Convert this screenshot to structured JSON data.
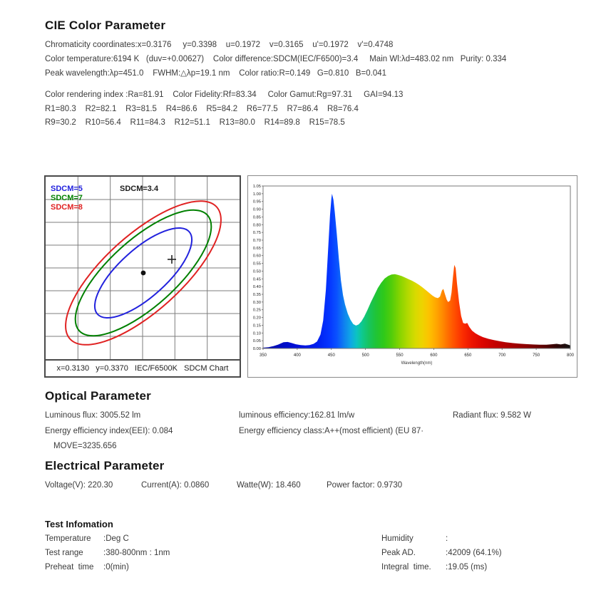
{
  "cie": {
    "title": "CIE Color Parameter",
    "line1": "Chromaticity coordinates:x=0.3176     y=0.3398    u=0.1972    v=0.3165    u'=0.1972    v'=0.4748",
    "line2": "Color temperature:6194 K   (duv=+0.00627)    Color difference:SDCM(IEC/F6500)=3.4     Main Wl:λd=483.02 nm   Purity: 0.334",
    "line3": "Peak wavelength:λp=451.0    FWHM:△λp=19.1 nm    Color ratio:R=0.149   G=0.810   B=0.041",
    "line4": "Color rendering index :Ra=81.91    Color Fidelity:Rf=83.34     Color Gamut:Rg=97.31     GAI=94.13",
    "line5": "R1=80.3    R2=82.1    R3=81.5    R4=86.6    R5=84.2    R6=77.5    R7=86.4    R8=76.4",
    "line6": "R9=30.2    R10=56.4    R11=84.3    R12=51.1    R13=80.0    R14=89.8    R15=78.5"
  },
  "optical": {
    "title": "Optical Parameter",
    "luminous_flux": "Luminous flux: 3005.52 lm",
    "luminous_efficiency": "luminous efficiency:162.81 lm/w",
    "radiant_flux": "Radiant flux: 9.582 W",
    "eei": "Energy efficiency index(EEI): 0.084",
    "energy_class": "Energy efficiency class:A++(most efficient) (EU 87·",
    "move": "MOVE=3235.656"
  },
  "electrical": {
    "title": "Electrical Parameter",
    "voltage": "Voltage(V): 220.30",
    "current": "Current(A): 0.0860",
    "wattage": "Watte(W): 18.460",
    "power_factor": "Power factor: 0.9730"
  },
  "test_info": {
    "title": "Test Infomation",
    "rows_left": [
      {
        "label": "Temperature",
        "value": ":Deg C"
      },
      {
        "label": "Test range",
        "value": ":380-800nm : 1nm"
      },
      {
        "label": "Preheat  time",
        "value": ":0(min)"
      }
    ],
    "rows_right": [
      {
        "label": "Humidity",
        "value": ":"
      },
      {
        "label": "Peak AD.",
        "value": ":42009 (64.1%)"
      },
      {
        "label": "Integral  time.",
        "value": ":19.05 (ms)"
      }
    ]
  },
  "colors": {
    "sdcm5": "#2222dd",
    "sdcm7": "#008000",
    "sdcm8": "#e02222",
    "text": "#3b3b3b"
  },
  "chart_data": [
    {
      "type": "scatter",
      "name": "SDCM chromaticity chart",
      "footer": "x=0.3130   y=0.3370   IEC/F6500K   SDCM Chart",
      "annotation": "SDCM=3.4",
      "legend": [
        {
          "label": "SDCM=5",
          "color": "#2222dd",
          "sdcm": 5
        },
        {
          "label": "SDCM=7",
          "color": "#008000",
          "sdcm": 7
        },
        {
          "label": "SDCM=8",
          "color": "#e02222",
          "sdcm": 8
        }
      ],
      "ellipses": [
        {
          "sdcm": 8,
          "color": "#e02222"
        },
        {
          "sdcm": 7,
          "color": "#008000"
        },
        {
          "sdcm": 5,
          "color": "#2222dd"
        }
      ],
      "points": [
        {
          "name": "measured",
          "x": 0.3176,
          "y": 0.3398,
          "marker": "dot"
        },
        {
          "name": "reference",
          "x": 0.313,
          "y": 0.337,
          "marker": "cross"
        }
      ],
      "grid": {
        "cols": 6,
        "rows": 8
      },
      "rotation_deg": -42
    },
    {
      "type": "area",
      "name": "Spectral power distribution",
      "xlabel": "Wavelength(nm)",
      "xlim": [
        350,
        800
      ],
      "ylim": [
        0,
        1.05
      ],
      "x_ticks": [
        "350",
        "400",
        "450",
        "500",
        "550",
        "600",
        "650",
        "700",
        "750",
        "800"
      ],
      "y_ticks": [
        "1.05",
        "1.00",
        "0.95",
        "0.90",
        "0.85",
        "0.80",
        "0.75",
        "0.70",
        "0.65",
        "0.60",
        "0.55",
        "0.50",
        "0.45",
        "0.40",
        "0.35",
        "0.30",
        "0.25",
        "0.20",
        "0.15",
        "0.10",
        "0.05",
        "0.00"
      ],
      "color_stops": [
        [
          350,
          "#0008a8"
        ],
        [
          400,
          "#0010d8"
        ],
        [
          430,
          "#0020f0"
        ],
        [
          447,
          "#0536ff"
        ],
        [
          458,
          "#0a52ff"
        ],
        [
          468,
          "#0f7df0"
        ],
        [
          478,
          "#0fa5e6"
        ],
        [
          487,
          "#0cc3c3"
        ],
        [
          495,
          "#0ec98f"
        ],
        [
          505,
          "#17c45f"
        ],
        [
          515,
          "#1fc437"
        ],
        [
          527,
          "#2fc919"
        ],
        [
          538,
          "#52cd0a"
        ],
        [
          550,
          "#85d400"
        ],
        [
          562,
          "#b3d900"
        ],
        [
          573,
          "#d8da00"
        ],
        [
          583,
          "#eed300"
        ],
        [
          593,
          "#fdc200"
        ],
        [
          603,
          "#ffa800"
        ],
        [
          613,
          "#ff8a00"
        ],
        [
          622,
          "#ff6a00"
        ],
        [
          632,
          "#ff4a00"
        ],
        [
          642,
          "#fb2e00"
        ],
        [
          655,
          "#ed1400"
        ],
        [
          670,
          "#dc0600"
        ],
        [
          690,
          "#c40000"
        ],
        [
          710,
          "#ac0000"
        ],
        [
          735,
          "#8c0000"
        ],
        [
          760,
          "#5e0000"
        ],
        [
          780,
          "#2e0606"
        ],
        [
          800,
          "#151515"
        ]
      ],
      "series": [
        {
          "name": "SPD",
          "points": [
            [
              350,
              0.005
            ],
            [
              358,
              0.008
            ],
            [
              365,
              0.015
            ],
            [
              372,
              0.025
            ],
            [
              380,
              0.04
            ],
            [
              386,
              0.042
            ],
            [
              392,
              0.035
            ],
            [
              398,
              0.027
            ],
            [
              405,
              0.022
            ],
            [
              412,
              0.02
            ],
            [
              418,
              0.022
            ],
            [
              424,
              0.03
            ],
            [
              429,
              0.045
            ],
            [
              434,
              0.09
            ],
            [
              438,
              0.18
            ],
            [
              442,
              0.38
            ],
            [
              445,
              0.62
            ],
            [
              448,
              0.86
            ],
            [
              450,
              0.97
            ],
            [
              451,
              1.0
            ],
            [
              453,
              0.96
            ],
            [
              455,
              0.88
            ],
            [
              458,
              0.74
            ],
            [
              461,
              0.58
            ],
            [
              464,
              0.44
            ],
            [
              467,
              0.345
            ],
            [
              470,
              0.285
            ],
            [
              474,
              0.225
            ],
            [
              478,
              0.185
            ],
            [
              482,
              0.158
            ],
            [
              486,
              0.148
            ],
            [
              490,
              0.155
            ],
            [
              494,
              0.175
            ],
            [
              498,
              0.205
            ],
            [
              503,
              0.25
            ],
            [
              508,
              0.3
            ],
            [
              513,
              0.345
            ],
            [
              518,
              0.39
            ],
            [
              523,
              0.425
            ],
            [
              528,
              0.452
            ],
            [
              533,
              0.468
            ],
            [
              538,
              0.478
            ],
            [
              543,
              0.48
            ],
            [
              548,
              0.475
            ],
            [
              553,
              0.468
            ],
            [
              558,
              0.458
            ],
            [
              563,
              0.448
            ],
            [
              568,
              0.438
            ],
            [
              573,
              0.426
            ],
            [
              578,
              0.412
            ],
            [
              583,
              0.396
            ],
            [
              588,
              0.378
            ],
            [
              593,
              0.36
            ],
            [
              598,
              0.342
            ],
            [
              602,
              0.33
            ],
            [
              606,
              0.325
            ],
            [
              609,
              0.335
            ],
            [
              612,
              0.375
            ],
            [
              614,
              0.385
            ],
            [
              616,
              0.355
            ],
            [
              619,
              0.315
            ],
            [
              621,
              0.3
            ],
            [
              624,
              0.31
            ],
            [
              626,
              0.36
            ],
            [
              628,
              0.46
            ],
            [
              630,
              0.54
            ],
            [
              632,
              0.52
            ],
            [
              634,
              0.42
            ],
            [
              637,
              0.3
            ],
            [
              640,
              0.21
            ],
            [
              643,
              0.165
            ],
            [
              646,
              0.16
            ],
            [
              649,
              0.165
            ],
            [
              652,
              0.14
            ],
            [
              656,
              0.115
            ],
            [
              661,
              0.098
            ],
            [
              666,
              0.085
            ],
            [
              672,
              0.073
            ],
            [
              680,
              0.062
            ],
            [
              688,
              0.054
            ],
            [
              696,
              0.047
            ],
            [
              705,
              0.04
            ],
            [
              715,
              0.035
            ],
            [
              725,
              0.031
            ],
            [
              735,
              0.028
            ],
            [
              745,
              0.026
            ],
            [
              755,
              0.024
            ],
            [
              765,
              0.024
            ],
            [
              773,
              0.027
            ],
            [
              780,
              0.03
            ],
            [
              786,
              0.026
            ],
            [
              792,
              0.031
            ],
            [
              797,
              0.024
            ],
            [
              800,
              0.02
            ]
          ]
        }
      ]
    }
  ]
}
